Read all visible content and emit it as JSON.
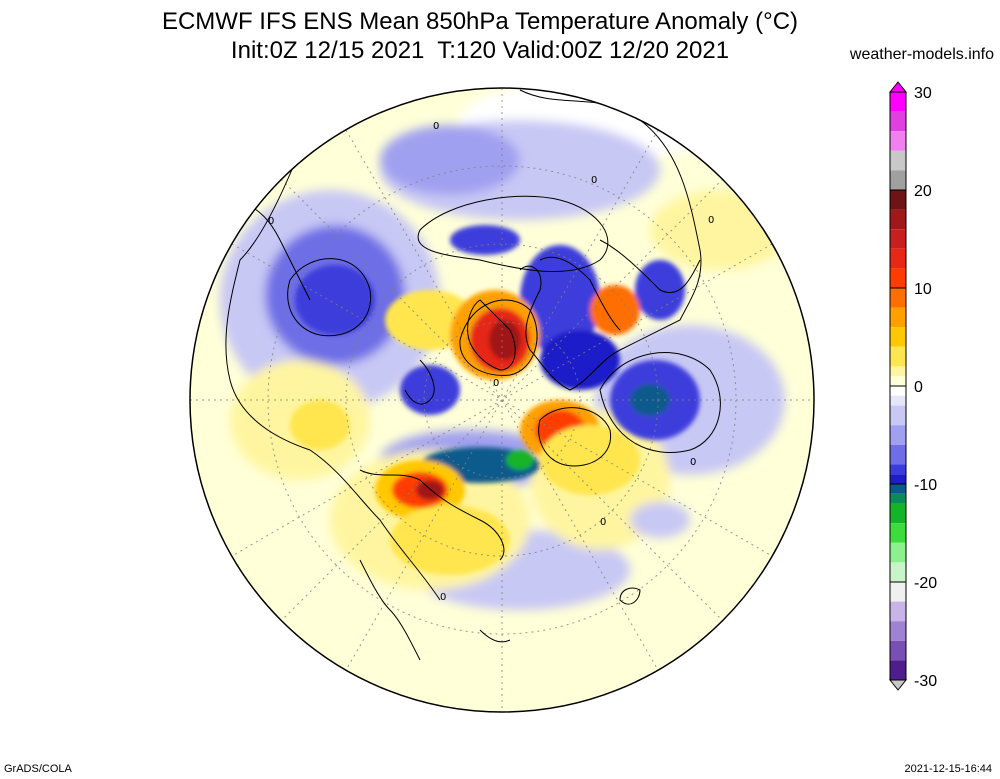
{
  "header": {
    "title_line1": "ECMWF IFS ENS Mean 850hPa Temperature Anomaly (°C)",
    "title_line2": "Init:0Z 12/15 2021  T:120 Valid:00Z 12/20 2021",
    "site": "weather-models.info"
  },
  "footer": {
    "credit": "GrADS/COLA",
    "timestamp": "2021-12-15-16:44"
  },
  "colorbar": {
    "min": -30,
    "max": 30,
    "ticks": [
      "30",
      "20",
      "10",
      "0",
      "-10",
      "-20",
      "-30"
    ],
    "colors": {
      "30": "#ff00ff",
      "28": "#e040e0",
      "26": "#f080f0",
      "24": "#c8c8c8",
      "22": "#a0a0a0",
      "20": "#6e1414",
      "18": "#a01818",
      "16": "#c81e1e",
      "14": "#e62814",
      "12": "#ff3c00",
      "10": "#ff6e00",
      "8": "#ffa000",
      "6": "#ffc800",
      "4": "#ffe650",
      "2": "#fff5a0",
      "1": "#ffffd8",
      "0": "#ffffff",
      "-1": "#e6e6fa",
      "-2": "#c8c8f5",
      "-4": "#a0a0f0",
      "-6": "#6e6ee6",
      "-8": "#3c3cdc",
      "-9": "#1e1ec8",
      "-10": "#0a5a8c",
      "-11": "#0a8c5a",
      "-12": "#14b428",
      "-14": "#3cdc3c",
      "-16": "#8cf08c",
      "-18": "#c8f5c8",
      "-20": "#f0f0f0",
      "-22": "#c8b4e6",
      "-24": "#a082d2",
      "-26": "#7850b4",
      "-28": "#501e8c",
      "-30": "#c8c8c8"
    }
  }
}
